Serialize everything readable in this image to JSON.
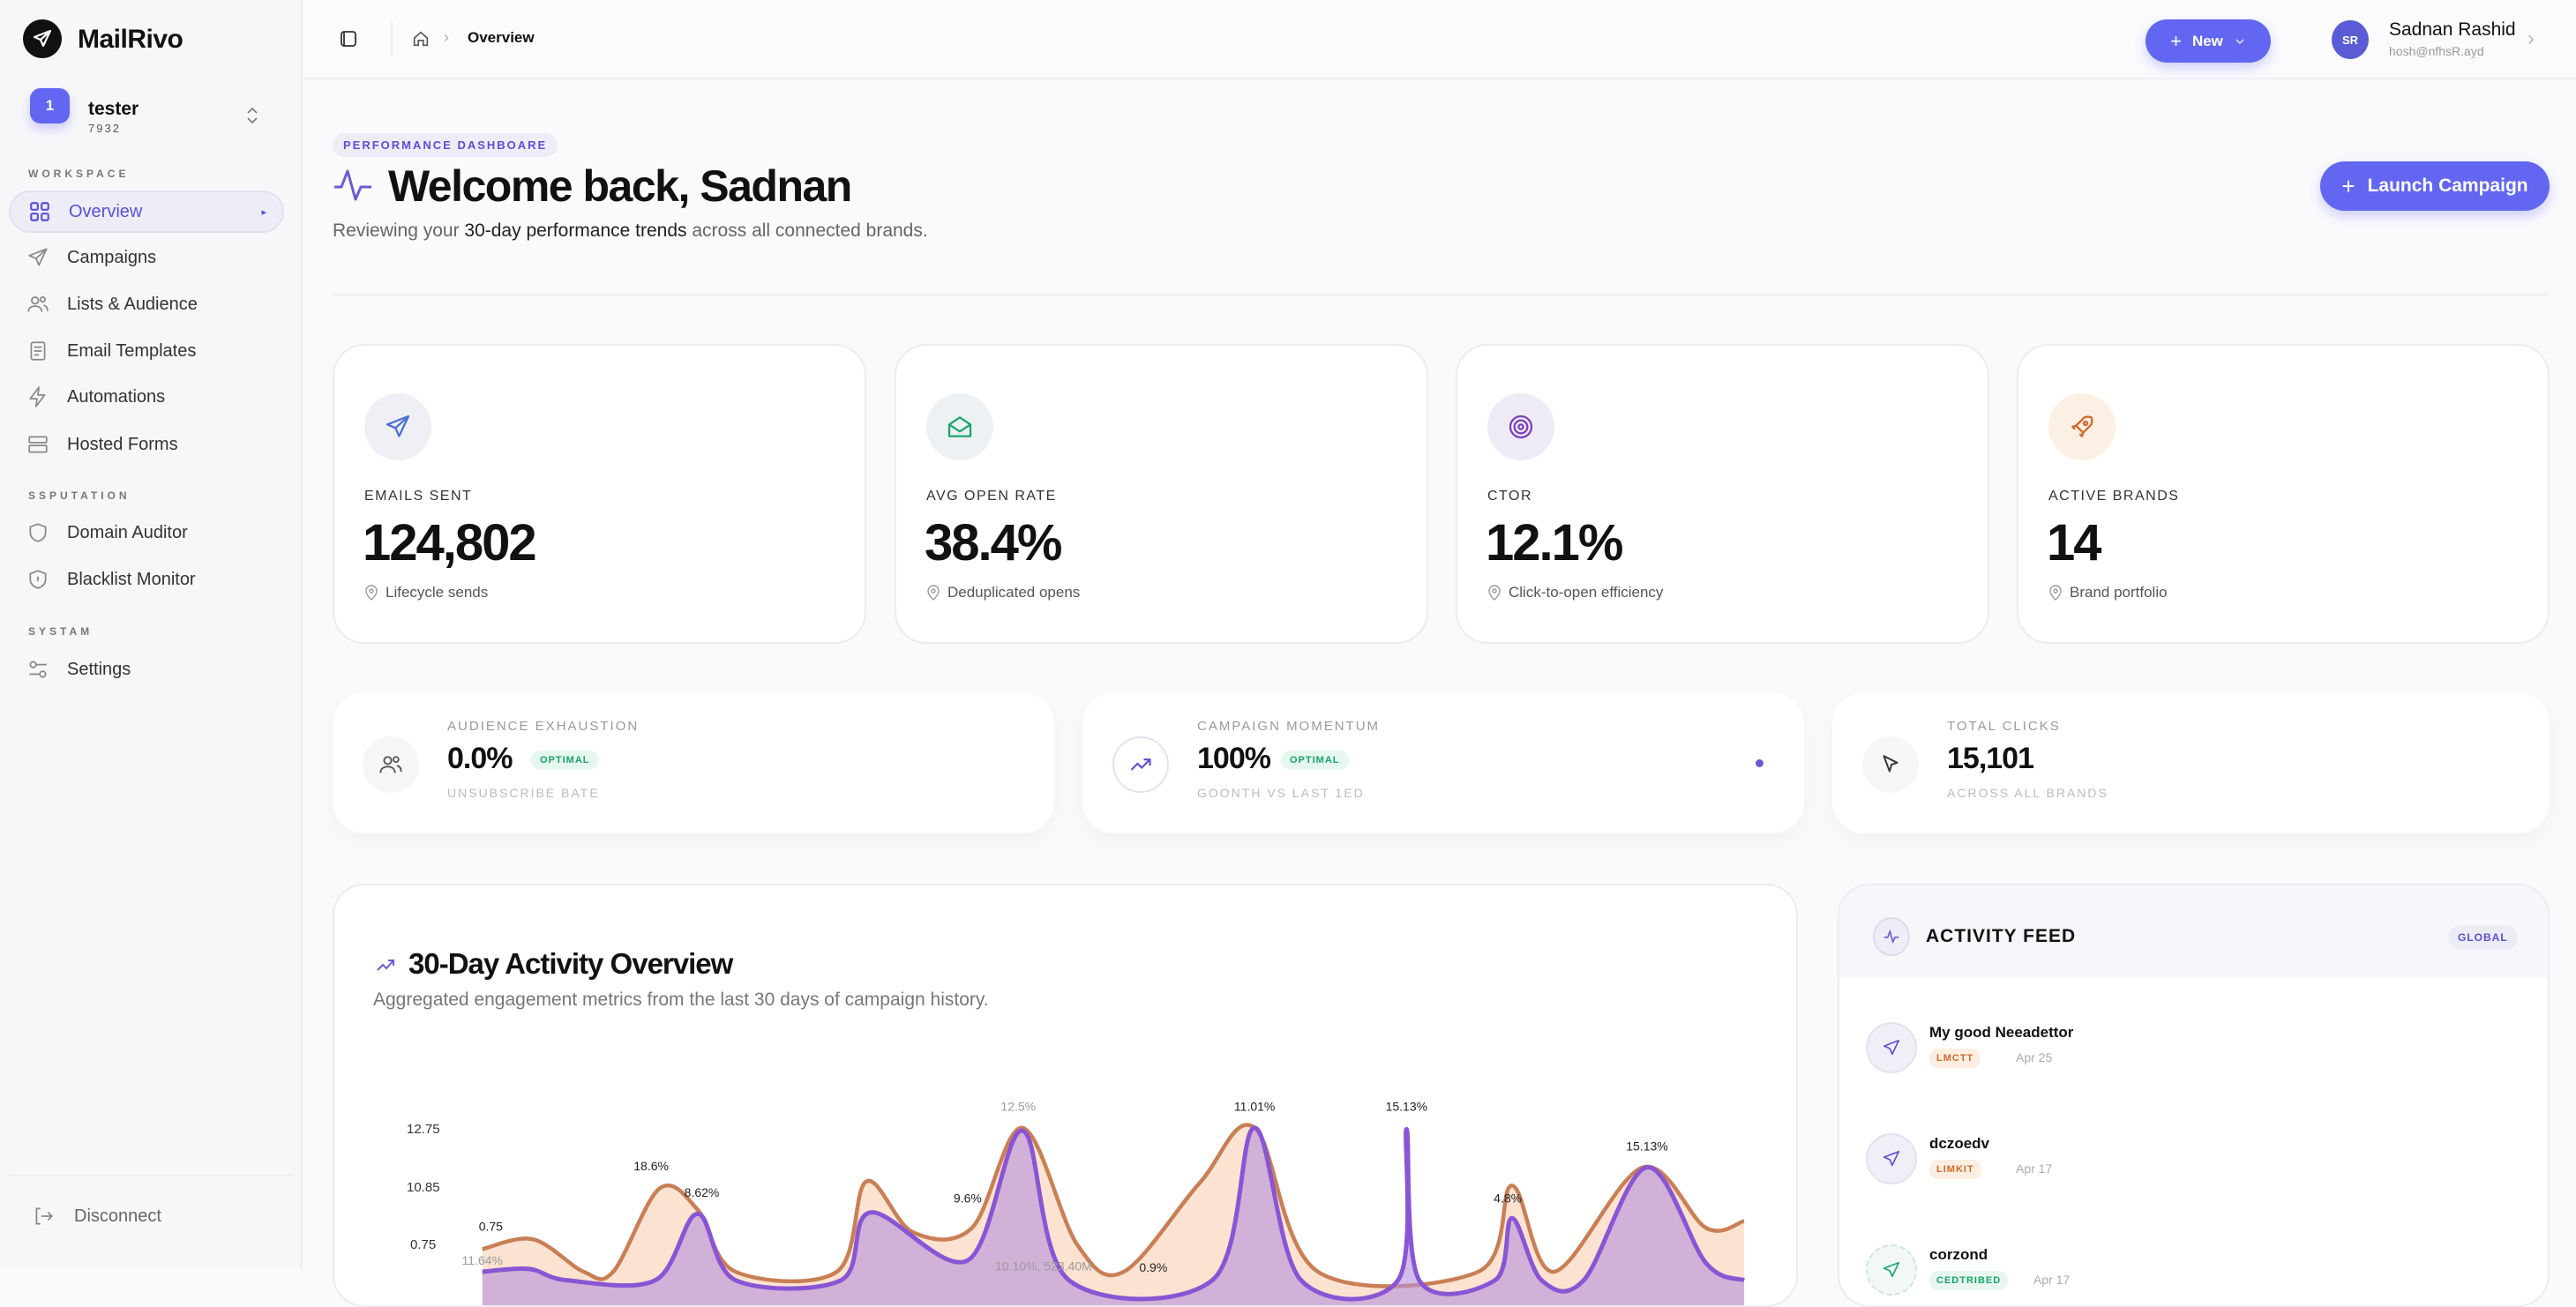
{
  "app": {
    "name": "MailRivo"
  },
  "workspace": {
    "avatar": "1",
    "name": "tester",
    "id": "7932"
  },
  "sidebar": {
    "sections": [
      "WORKSPACE",
      "SSPUTATION",
      "SYSTAM"
    ],
    "items": [
      {
        "label": "Overview",
        "icon": "grid-icon",
        "active": true
      },
      {
        "label": "Campaigns",
        "icon": "send-icon"
      },
      {
        "label": "Lists & Audience",
        "icon": "users-icon"
      },
      {
        "label": "Email Templates",
        "icon": "document-icon"
      },
      {
        "label": "Automations",
        "icon": "lightning-icon"
      },
      {
        "label": "Hosted Forms",
        "icon": "form-icon"
      },
      {
        "label": "Domain Auditor",
        "icon": "shield-icon"
      },
      {
        "label": "Blacklist Monitor",
        "icon": "shield-icon"
      },
      {
        "label": "Settings",
        "icon": "sliders-icon"
      }
    ],
    "disconnect": "Disconnect"
  },
  "header": {
    "breadcrumb": "Overview",
    "new_label": "New",
    "user": {
      "initials": "SR",
      "name": "Sadnan Rashid",
      "email": "hosh@nfhsR.ayd"
    }
  },
  "hero": {
    "badge": "PERFORMANCE DASHBOARE",
    "title": "Welcome back, Sadnan",
    "subtitle_pre": "Reviewing your ",
    "subtitle_em": "30-day performance trends",
    "subtitle_post": " across all connected brands.",
    "launch_label": "Launch Campaign"
  },
  "kpis": [
    {
      "label": "EMAILS SENT",
      "value": "124,802",
      "sub": "Lifecycle sends",
      "icon": "send-icon",
      "color": "#4a6fd6",
      "bg": "#eef0f6"
    },
    {
      "label": "AVG OPEN RATE",
      "value": "38.4%",
      "sub": "Deduplicated opens",
      "icon": "mail-open-icon",
      "color": "#1aa56c",
      "bg": "#eef1f4"
    },
    {
      "label": "CTOR",
      "value": "12.1%",
      "sub": "Click-to-open efficiency",
      "icon": "target-icon",
      "color": "#7b3fb5",
      "bg": "#efebf6"
    },
    {
      "label": "ACTIVE BRANDS",
      "value": "14",
      "sub": "Brand portfolio",
      "icon": "rocket-icon",
      "color": "#d0682c",
      "bg": "#fcefe4"
    }
  ],
  "secondary": [
    {
      "label": "AUDIENCE EXHAUSTION",
      "value": "0.0%",
      "badge": "OPTIMAL",
      "note": "UNSUBSCRIBE BATE",
      "icon": "users-icon"
    },
    {
      "label": "CAMPAIGN MOMENTUM",
      "value": "100%",
      "badge": "OPTIMAL",
      "note": "GOONTH VS LAST 1ED",
      "icon": "trending-up-icon"
    },
    {
      "label": "TOTAL CLICKS",
      "value": "15,101",
      "note": "ACROSS ALL BRANDS",
      "icon": "cursor-icon"
    }
  ],
  "activity_chart": {
    "title": "30-Day Activity Overview",
    "subtitle": "Aggregated engagement metrics from the last 30 days of campaign history."
  },
  "chart_data": {
    "type": "area",
    "xlim": [
      0,
      30
    ],
    "ylim": [
      0,
      16
    ],
    "grid": false,
    "ytick_labels": [
      "12.75",
      "10.85",
      "0.75"
    ],
    "series": [
      {
        "color": "#c97f55",
        "fill": "#fbd9c2",
        "points": [
          [
            0.1,
            4.1
          ],
          [
            1.3,
            4.8
          ],
          [
            2.5,
            2.5
          ],
          [
            3.2,
            2.5
          ],
          [
            4.3,
            8.4
          ],
          [
            5.2,
            6.9
          ],
          [
            6.1,
            2.5
          ],
          [
            8.5,
            2.5
          ],
          [
            9.2,
            8.9
          ],
          [
            10.3,
            5.3
          ],
          [
            11.7,
            5.6
          ],
          [
            12.9,
            12.7
          ],
          [
            14.2,
            4.4
          ],
          [
            15.3,
            2.5
          ],
          [
            17.1,
            8.8
          ],
          [
            18.4,
            12.7
          ],
          [
            19.9,
            2.5
          ],
          [
            23.7,
            2.5
          ],
          [
            24.5,
            8.6
          ],
          [
            25.5,
            2.5
          ],
          [
            27.6,
            9.9
          ],
          [
            29.1,
            5.6
          ],
          [
            30,
            6.1
          ]
        ]
      },
      {
        "color": "#8a55d4",
        "fill": "#b48fdc",
        "points": [
          [
            0.1,
            2.5
          ],
          [
            1.2,
            2.7
          ],
          [
            2.1,
            1.9
          ],
          [
            4.2,
            1.9
          ],
          [
            5.2,
            6.6
          ],
          [
            6.1,
            1.9
          ],
          [
            8.6,
            1.9
          ],
          [
            9.3,
            6.7
          ],
          [
            11.6,
            3.3
          ],
          [
            12.9,
            12.5
          ],
          [
            14,
            1.9
          ],
          [
            17.4,
            1.9
          ],
          [
            18.4,
            12.7
          ],
          [
            19.5,
            1.9
          ],
          [
            21.8,
            1.9
          ],
          [
            22,
            12.6
          ],
          [
            22.3,
            1.9
          ],
          [
            24.1,
            1.9
          ],
          [
            24.5,
            6.3
          ],
          [
            25.2,
            1.9
          ],
          [
            26.2,
            1.9
          ],
          [
            27.7,
            9.9
          ],
          [
            29.1,
            3.1
          ],
          [
            30,
            1.9
          ]
        ]
      }
    ],
    "annotations": [
      {
        "text": "0.75",
        "x": 0.3,
        "y": 5.4
      },
      {
        "text": "11.64%",
        "x": 0.1,
        "y": 3.0,
        "muted": true
      },
      {
        "text": "18.6%",
        "x": 4.1,
        "y": 9.7
      },
      {
        "text": "8.62%",
        "x": 5.3,
        "y": 7.8
      },
      {
        "text": "9.6%",
        "x": 11.6,
        "y": 7.4
      },
      {
        "text": "12.5%",
        "x": 12.8,
        "y": 13.9,
        "muted": true
      },
      {
        "text": "10.10%, 523.40M",
        "x": 13.4,
        "y": 2.6,
        "muted": true
      },
      {
        "text": "0.9%",
        "x": 16.0,
        "y": 2.5
      },
      {
        "text": "11.01%",
        "x": 18.4,
        "y": 13.9
      },
      {
        "text": "15.13%",
        "x": 22.0,
        "y": 13.9
      },
      {
        "text": "4.8%",
        "x": 24.4,
        "y": 7.4
      },
      {
        "text": "15.13%",
        "x": 27.7,
        "y": 11.1
      }
    ]
  },
  "activity_feed": {
    "title": "ACTIVITY FEED",
    "scope": "GLOBAL",
    "items": [
      {
        "title": "My good Neeadettor",
        "tag": "LMCTT",
        "date": "Apr 25",
        "kind": "warn"
      },
      {
        "title": "dczoedv",
        "tag": "LIMKIT",
        "date": "Apr 17",
        "kind": "warn"
      },
      {
        "title": "corzond",
        "tag": "CEDTRIBED",
        "date": "Apr 17",
        "kind": "ok"
      }
    ]
  }
}
